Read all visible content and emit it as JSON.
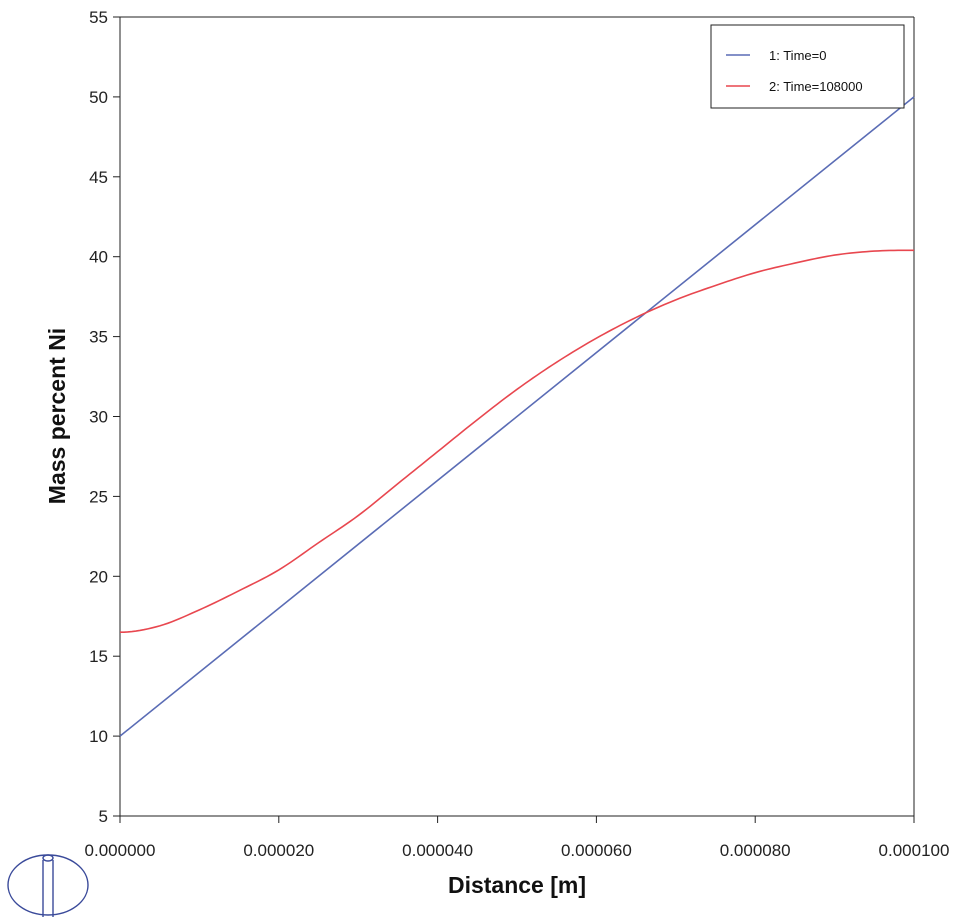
{
  "chart_data": {
    "type": "line",
    "title": "",
    "xlabel": "Distance [m]",
    "ylabel": "Mass percent Ni",
    "xlim": [
      0,
      0.0001
    ],
    "ylim": [
      5,
      55
    ],
    "x_ticks": [
      0,
      2e-05,
      4e-05,
      6e-05,
      8e-05,
      0.0001
    ],
    "x_tick_labels": [
      "0.000000",
      "0.000020",
      "0.000040",
      "0.000060",
      "0.000080",
      "0.000100"
    ],
    "y_ticks": [
      5,
      10,
      15,
      20,
      25,
      30,
      35,
      40,
      45,
      50,
      55
    ],
    "y_tick_labels": [
      "5",
      "10",
      "15",
      "20",
      "25",
      "30",
      "35",
      "40",
      "45",
      "50",
      "55"
    ],
    "grid": false,
    "legend_position": "top-right",
    "series": [
      {
        "name": "1:  Time=0",
        "color": "#5a6cb5",
        "x": [
          0,
          0.0001
        ],
        "y": [
          10,
          50
        ]
      },
      {
        "name": "2:  Time=108000",
        "color": "#e8474f",
        "x": [
          0,
          5e-06,
          1e-05,
          1.5e-05,
          2e-05,
          2.5e-05,
          3e-05,
          3.5e-05,
          4e-05,
          4.5e-05,
          5e-05,
          5.5e-05,
          6e-05,
          6.5e-05,
          7e-05,
          7.5e-05,
          8e-05,
          8.5e-05,
          9e-05,
          9.5e-05,
          0.0001
        ],
        "y": [
          16.5,
          16.9,
          17.9,
          19.1,
          20.4,
          22.1,
          23.8,
          25.8,
          27.8,
          29.8,
          31.7,
          33.4,
          34.9,
          36.2,
          37.3,
          38.2,
          39.0,
          39.6,
          40.1,
          40.35,
          40.4
        ]
      }
    ]
  },
  "logo": {
    "name": "logo-icon"
  }
}
